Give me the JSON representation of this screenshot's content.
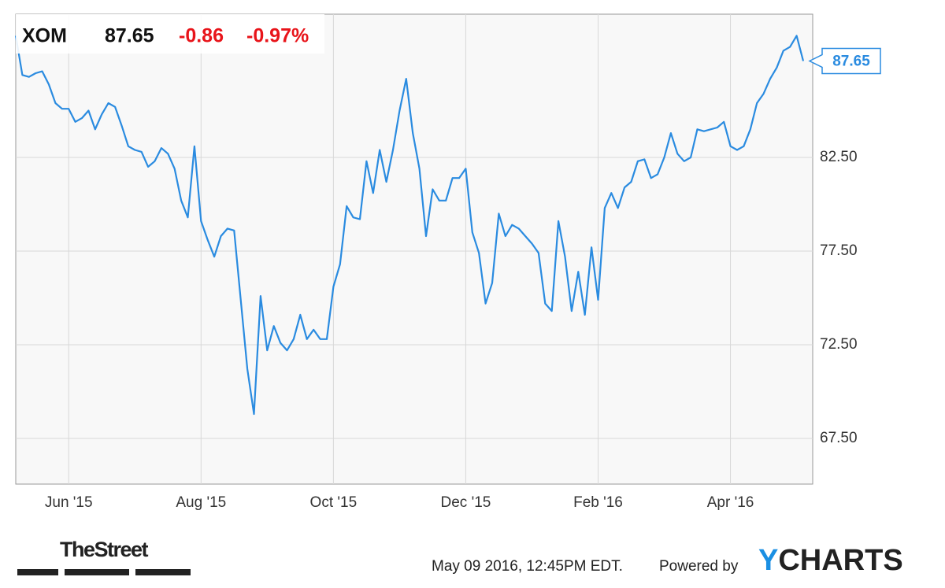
{
  "chart_data": {
    "type": "line",
    "header": {
      "ticker": "XOM",
      "price": "87.65",
      "change": "-0.86",
      "change_pct": "-0.97%"
    },
    "categories": [
      null,
      null,
      null,
      null,
      null,
      null,
      null,
      null,
      "Jun '15",
      null,
      null,
      null,
      null,
      null,
      null,
      null,
      null,
      null,
      null,
      null,
      null,
      null,
      null,
      null,
      null,
      null,
      null,
      null,
      "Aug '15",
      null,
      null,
      null,
      null,
      null,
      null,
      null,
      null,
      null,
      null,
      null,
      null,
      null,
      null,
      null,
      null,
      null,
      null,
      null,
      "Oct '15",
      null,
      null,
      null,
      null,
      null,
      null,
      null,
      null,
      null,
      null,
      null,
      null,
      null,
      null,
      null,
      null,
      null,
      null,
      null,
      "Dec '15",
      null,
      null,
      null,
      null,
      null,
      null,
      null,
      null,
      null,
      null,
      null,
      null,
      null,
      null,
      null,
      null,
      null,
      null,
      null,
      "Feb '16",
      null,
      null,
      null,
      null,
      null,
      null,
      null,
      null,
      null,
      null,
      null,
      null,
      null,
      null,
      null,
      null,
      null,
      null,
      null,
      "Apr '16",
      null,
      null,
      null,
      null,
      null,
      null,
      null,
      null,
      null,
      null,
      null
    ],
    "series": [
      {
        "name": "XOM",
        "color": "#2a8be0",
        "values": [
          89.0,
          86.9,
          86.8,
          87.0,
          87.1,
          86.4,
          85.4,
          85.1,
          85.1,
          84.4,
          84.6,
          85.0,
          84.0,
          84.8,
          85.4,
          85.2,
          84.2,
          83.1,
          82.9,
          82.8,
          82.0,
          82.3,
          83.0,
          82.7,
          81.9,
          80.2,
          79.3,
          83.1,
          79.1,
          78.1,
          77.2,
          78.3,
          78.7,
          78.6,
          74.9,
          71.2,
          68.8,
          75.1,
          72.2,
          73.5,
          72.6,
          72.2,
          72.8,
          74.1,
          72.8,
          73.3,
          72.8,
          72.8,
          75.6,
          76.8,
          79.9,
          79.3,
          79.2,
          82.3,
          80.6,
          82.9,
          81.2,
          82.9,
          85.0,
          86.7,
          83.8,
          81.9,
          78.3,
          80.8,
          80.2,
          80.2,
          81.4,
          81.4,
          81.9,
          78.5,
          77.4,
          74.7,
          75.8,
          79.5,
          78.3,
          78.9,
          78.7,
          78.3,
          77.9,
          77.4,
          74.7,
          74.3,
          79.1,
          77.2,
          74.3,
          76.4,
          74.1,
          77.7,
          74.9,
          79.8,
          80.6,
          79.8,
          80.9,
          81.2,
          82.3,
          82.4,
          81.4,
          81.6,
          82.5,
          83.8,
          82.7,
          82.3,
          82.5,
          84.0,
          83.9,
          84.0,
          84.1,
          84.4,
          83.1,
          82.9,
          83.1,
          84.0,
          85.4,
          85.9,
          86.7,
          87.3,
          88.2,
          88.4,
          89.0,
          87.65
        ]
      }
    ],
    "ylim": [
      65.06,
      90.15
    ],
    "yticks": [
      {
        "value": 67.5,
        "label": "67.50"
      },
      {
        "value": 72.5,
        "label": "72.50"
      },
      {
        "value": 77.5,
        "label": "77.50"
      },
      {
        "value": 82.5,
        "label": "82.50"
      }
    ],
    "grid": true,
    "footer": {
      "source": "TheStreet",
      "timestamp": "May 09 2016, 12:45PM EDT.",
      "powered": "Powered by",
      "brand": "YCHARTS"
    }
  }
}
